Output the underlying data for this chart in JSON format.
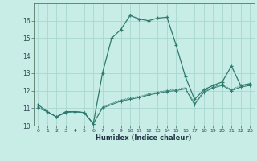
{
  "xlabel": "Humidex (Indice chaleur)",
  "ylabel": "",
  "bg_color": "#c8ece6",
  "grid_color": "#a8d8d0",
  "line_color": "#2d7a6e",
  "xlim": [
    -0.5,
    23.5
  ],
  "ylim": [
    10,
    17
  ],
  "yticks": [
    10,
    11,
    12,
    13,
    14,
    15,
    16
  ],
  "xticks": [
    0,
    1,
    2,
    3,
    4,
    5,
    6,
    7,
    8,
    9,
    10,
    11,
    12,
    13,
    14,
    15,
    16,
    17,
    18,
    19,
    20,
    21,
    22,
    23
  ],
  "line1_x": [
    0,
    1,
    2,
    3,
    4,
    5,
    6,
    7,
    8,
    9,
    10,
    11,
    12,
    13,
    14,
    15,
    16,
    17,
    18,
    19,
    20,
    21,
    22,
    23
  ],
  "line1_y": [
    11.2,
    10.8,
    10.5,
    10.8,
    10.8,
    10.75,
    10.1,
    13.0,
    15.0,
    15.5,
    16.3,
    16.1,
    16.0,
    16.15,
    16.2,
    14.6,
    12.8,
    11.5,
    12.05,
    12.3,
    12.5,
    13.4,
    12.3,
    12.4
  ],
  "line2_x": [
    0,
    1,
    2,
    3,
    4,
    5,
    6,
    7,
    8,
    9,
    10,
    11,
    12,
    13,
    14,
    15,
    16,
    17,
    18,
    19,
    20,
    21,
    22,
    23
  ],
  "line2_y": [
    11.0,
    10.8,
    10.5,
    10.75,
    10.8,
    10.75,
    10.1,
    11.0,
    11.2,
    11.4,
    11.5,
    11.6,
    11.75,
    11.85,
    11.95,
    12.0,
    12.1,
    11.2,
    11.9,
    12.15,
    12.3,
    12.0,
    12.2,
    12.3
  ],
  "line3_x": [
    0,
    1,
    2,
    3,
    4,
    5,
    6,
    7,
    8,
    9,
    10,
    11,
    12,
    13,
    14,
    15,
    16,
    17,
    18,
    19,
    20,
    21,
    22,
    23
  ],
  "line3_y": [
    11.05,
    10.8,
    10.5,
    10.75,
    10.8,
    10.75,
    10.1,
    11.05,
    11.25,
    11.45,
    11.55,
    11.65,
    11.8,
    11.9,
    12.0,
    12.05,
    12.15,
    11.25,
    11.95,
    12.2,
    12.35,
    12.05,
    12.25,
    12.35
  ],
  "line4_x": [
    0,
    1,
    2,
    3,
    4,
    5,
    6,
    7,
    8,
    9,
    10,
    11,
    12,
    13,
    14,
    15,
    16,
    17,
    18,
    19,
    20,
    21,
    22,
    23
  ],
  "line4_y": [
    11.1,
    10.8,
    10.5,
    10.78,
    10.8,
    10.75,
    10.1,
    11.08,
    11.28,
    11.48,
    11.58,
    11.68,
    11.82,
    11.92,
    12.02,
    12.08,
    12.18,
    11.28,
    11.98,
    12.22,
    12.38,
    12.08,
    12.28,
    12.38
  ]
}
